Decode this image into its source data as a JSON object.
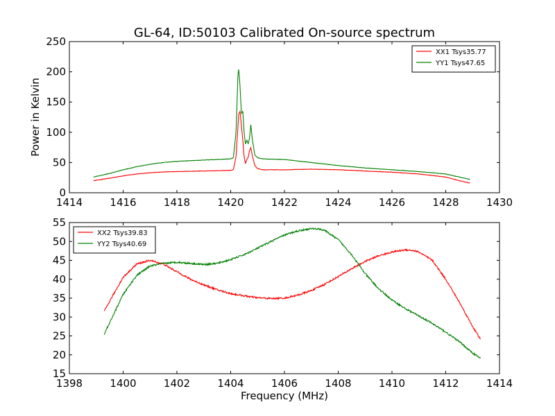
{
  "figure_title": "GL-64, ID:50103 Calibrated On-source spectrum",
  "chart_data": [
    {
      "type": "line",
      "ylabel": "Power in Kelvin",
      "xlabel": "",
      "xlim": [
        1414,
        1430
      ],
      "ylim": [
        0,
        250
      ],
      "xticks": [
        1414,
        1416,
        1418,
        1420,
        1422,
        1424,
        1426,
        1428,
        1430
      ],
      "yticks": [
        0,
        50,
        100,
        150,
        200,
        250
      ],
      "legend_position": "top-right",
      "grid": false,
      "series": [
        {
          "name": "XX1 Tsys35.77",
          "color": "#ff0000",
          "x": [
            1414.9,
            1415.5,
            1416.0,
            1416.5,
            1417.0,
            1417.5,
            1418.0,
            1419.0,
            1420.0,
            1420.1,
            1420.2,
            1420.3,
            1420.35,
            1420.4,
            1420.45,
            1420.5,
            1420.55,
            1420.6,
            1420.65,
            1420.7,
            1420.75,
            1420.8,
            1420.9,
            1421.0,
            1421.2,
            1422.0,
            1423.0,
            1424.0,
            1425.0,
            1426.0,
            1427.0,
            1428.0,
            1428.5,
            1428.9
          ],
          "y": [
            20,
            24,
            28,
            31,
            33,
            34.5,
            35,
            36,
            37,
            38,
            60,
            130,
            135,
            110,
            88,
            60,
            48,
            55,
            58,
            70,
            75,
            62,
            45,
            40,
            38,
            38,
            39,
            38,
            36,
            34,
            31,
            26,
            20,
            16
          ]
        },
        {
          "name": "YY1 Tsys47.65",
          "color": "#008000",
          "x": [
            1414.9,
            1415.5,
            1416.0,
            1416.5,
            1417.0,
            1417.5,
            1418.0,
            1419.0,
            1420.0,
            1420.1,
            1420.2,
            1420.27,
            1420.3,
            1420.35,
            1420.4,
            1420.45,
            1420.5,
            1420.55,
            1420.6,
            1420.65,
            1420.7,
            1420.75,
            1420.8,
            1420.9,
            1421.0,
            1421.2,
            1422.0,
            1423.0,
            1424.0,
            1425.0,
            1426.0,
            1427.0,
            1428.0,
            1428.5,
            1428.9
          ],
          "y": [
            26,
            32,
            38,
            43,
            47,
            50,
            52,
            54,
            56,
            58,
            100,
            195,
            205,
            175,
            130,
            136,
            100,
            80,
            88,
            80,
            90,
            113,
            90,
            62,
            58,
            56,
            55,
            50,
            45,
            41,
            38,
            35,
            31,
            26,
            22
          ]
        }
      ]
    },
    {
      "type": "line",
      "xlabel": "Frequency (MHz)",
      "ylabel": "",
      "xlim": [
        1398,
        1414
      ],
      "ylim": [
        15,
        55
      ],
      "xticks": [
        1398,
        1400,
        1402,
        1404,
        1406,
        1408,
        1410,
        1412,
        1414
      ],
      "yticks": [
        15,
        20,
        25,
        30,
        35,
        40,
        45,
        50,
        55
      ],
      "legend_position": "top-left",
      "grid": false,
      "series": [
        {
          "name": "XX2 Tsys39.83",
          "color": "#ff0000",
          "x": [
            1399.3,
            1399.6,
            1400.0,
            1400.5,
            1401.0,
            1401.5,
            1402.0,
            1402.5,
            1403.0,
            1403.5,
            1404.0,
            1404.5,
            1405.0,
            1405.5,
            1406.0,
            1406.5,
            1407.0,
            1407.5,
            1408.0,
            1408.5,
            1409.0,
            1409.5,
            1410.0,
            1410.5,
            1410.8,
            1411.0,
            1411.5,
            1412.0,
            1412.5,
            1413.0,
            1413.3
          ],
          "y": [
            31.5,
            35.5,
            40.5,
            44,
            45,
            44,
            42,
            40,
            38.5,
            37.2,
            36.2,
            35.6,
            35.1,
            34.9,
            35,
            35.8,
            37,
            38.7,
            40.7,
            42.8,
            44.7,
            46.2,
            47.2,
            47.8,
            47.6,
            47.2,
            45,
            40,
            34,
            27.5,
            24
          ]
        },
        {
          "name": "YY2 Tsys40.69",
          "color": "#008000",
          "x": [
            1399.3,
            1399.6,
            1400.0,
            1400.5,
            1401.0,
            1401.5,
            1402.0,
            1402.5,
            1403.0,
            1403.5,
            1404.0,
            1404.5,
            1405.0,
            1405.5,
            1406.0,
            1406.5,
            1407.0,
            1407.3,
            1407.5,
            1408.0,
            1408.5,
            1409.0,
            1409.5,
            1410.0,
            1410.5,
            1411.0,
            1411.5,
            1412.0,
            1412.5,
            1413.0,
            1413.3
          ],
          "y": [
            25.5,
            30,
            36,
            41,
            43.5,
            44.2,
            44.5,
            44.2,
            43.9,
            44.2,
            45.2,
            46.5,
            48.2,
            50,
            51.7,
            52.8,
            53.4,
            53.3,
            52.9,
            50.5,
            46.5,
            41.5,
            37.5,
            34.5,
            32.2,
            30.3,
            28.3,
            26,
            23.5,
            20.5,
            19
          ]
        }
      ]
    }
  ]
}
